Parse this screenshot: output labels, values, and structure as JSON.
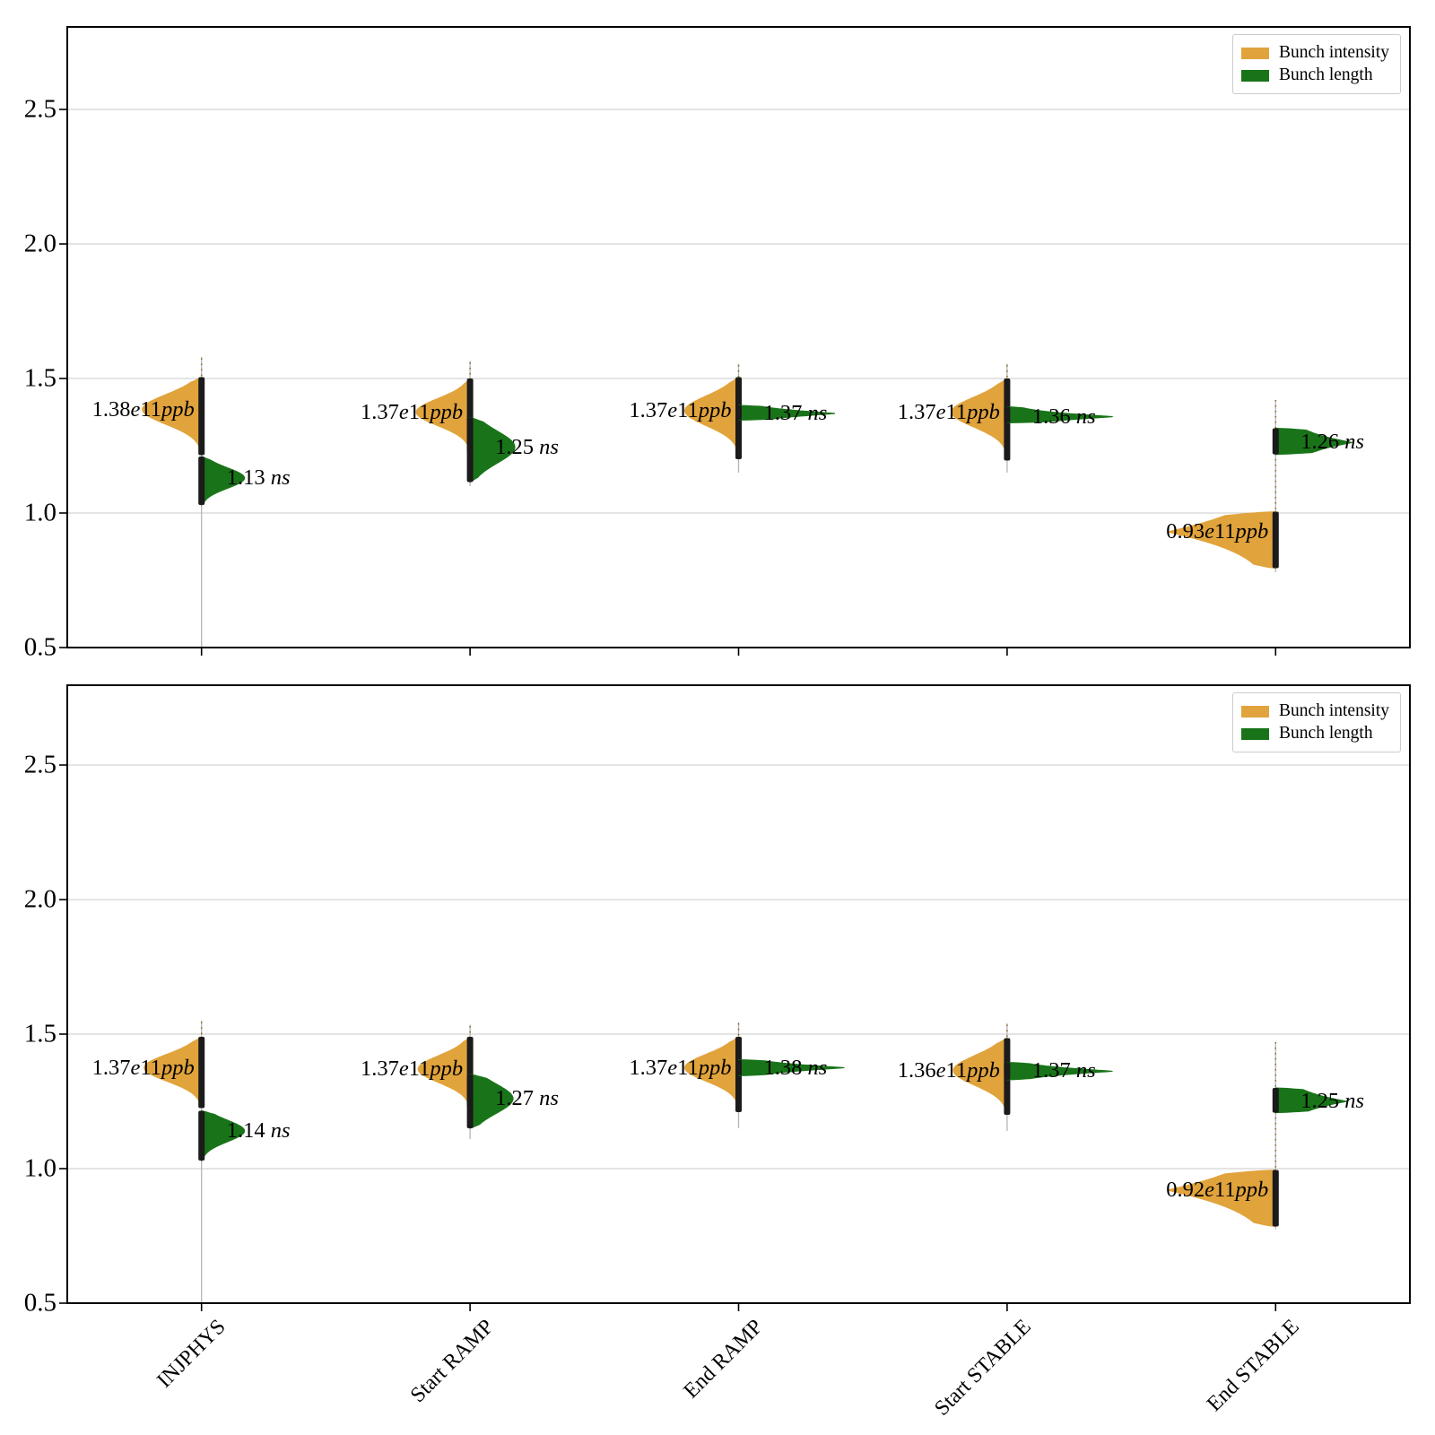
{
  "figure": {
    "background": "#ffffff",
    "frame_color": "#000000",
    "grid_color": "#c9c9c9",
    "whisker_color": "#b5b5b5",
    "dots_color": "#8a6420",
    "bar_color": "#1b1b1b",
    "ytick_labels": [
      "0.5",
      "1.0",
      "1.5",
      "2.0",
      "2.5"
    ],
    "categories": [
      "INJPHYS",
      "Start RAMP",
      "End RAMP",
      "Start STABLE",
      "End STABLE"
    ],
    "legend": {
      "items": [
        {
          "label": "Bunch intensity",
          "color": "#e1a33c"
        },
        {
          "label": "Bunch length",
          "color": "#197419"
        }
      ]
    }
  },
  "chart_data": [
    {
      "type": "violin",
      "panel": "top",
      "ylim": [
        0.5,
        2.8
      ],
      "yticks": [
        0.5,
        1.0,
        1.5,
        2.0,
        2.5
      ],
      "grid": true,
      "legend_position": "upper right",
      "categories": [
        "INJPHYS",
        "Start RAMP",
        "End RAMP",
        "Start STABLE",
        "End STABLE"
      ],
      "series_names": [
        "Bunch intensity",
        "Bunch length"
      ],
      "groups": [
        {
          "category": "INJPHYS",
          "intensity": {
            "label": "1.38e11ppb",
            "value": 1.38,
            "unit": "e11 ppb",
            "peak": 1.385,
            "lo": 1.215,
            "hi": 1.505,
            "maxw": 66,
            "sigma": 0.055,
            "whisker": [
              0.5,
              1.58
            ],
            "dots": [
              1.505,
              1.575
            ]
          },
          "length": {
            "label": "1.13 ns",
            "value": 1.13,
            "unit": "ns",
            "peak": 1.13,
            "lo": 1.03,
            "hi": 1.21,
            "maxw": 48,
            "sigma": 0.038
          }
        },
        {
          "category": "Start RAMP",
          "intensity": {
            "label": "1.37e11ppb",
            "value": 1.37,
            "unit": "e11 ppb",
            "peak": 1.375,
            "lo": 1.22,
            "hi": 1.5,
            "maxw": 60,
            "sigma": 0.05,
            "whisker": [
              1.1,
              1.565
            ],
            "dots": [
              1.5,
              1.56
            ]
          },
          "length": {
            "label": "1.25 ns",
            "value": 1.25,
            "unit": "ns",
            "peak": 1.245,
            "lo": 1.115,
            "hi": 1.355,
            "maxw": 50,
            "sigma": 0.06
          }
        },
        {
          "category": "End RAMP",
          "intensity": {
            "label": "1.37e11ppb",
            "value": 1.37,
            "unit": "e11 ppb",
            "peak": 1.38,
            "lo": 1.2,
            "hi": 1.505,
            "maxw": 60,
            "sigma": 0.055,
            "whisker": [
              1.15,
              1.555
            ],
            "dots": [
              1.505,
              1.55
            ]
          },
          "length": {
            "label": "1.37 ns",
            "value": 1.37,
            "unit": "ns",
            "peak": 1.37,
            "lo": 1.345,
            "hi": 1.4,
            "maxw": 108,
            "sigma": 0.011,
            "p": 1.2
          }
        },
        {
          "category": "Start STABLE",
          "intensity": {
            "label": "1.37e11ppb",
            "value": 1.37,
            "unit": "e11 ppb",
            "peak": 1.375,
            "lo": 1.195,
            "hi": 1.5,
            "maxw": 62,
            "sigma": 0.055,
            "whisker": [
              1.15,
              1.555
            ],
            "dots": [
              1.5,
              1.55
            ]
          },
          "length": {
            "label": "1.36 ns",
            "value": 1.36,
            "unit": "ns",
            "peak": 1.358,
            "lo": 1.335,
            "hi": 1.395,
            "maxw": 118,
            "sigma": 0.011,
            "p": 1.2
          }
        },
        {
          "category": "End STABLE",
          "intensity": {
            "label": "0.93e11ppb",
            "value": 0.93,
            "unit": "e11 ppb",
            "peak": 0.93,
            "lo": 0.795,
            "hi": 1.005,
            "maxw": 120,
            "sigma": 0.042,
            "p": 1.1,
            "whisker": [
              0.78,
              1.42
            ],
            "dots": [
              1.005,
              1.42
            ]
          },
          "length": {
            "label": "1.26 ns",
            "value": 1.26,
            "unit": "ns",
            "peak": 1.262,
            "lo": 1.218,
            "hi": 1.315,
            "maxw": 86,
            "sigma": 0.025,
            "p": 1.0
          }
        }
      ]
    },
    {
      "type": "violin",
      "panel": "bottom",
      "ylim": [
        0.5,
        2.8
      ],
      "yticks": [
        0.5,
        1.0,
        1.5,
        2.0,
        2.5
      ],
      "grid": true,
      "legend_position": "upper right",
      "categories": [
        "INJPHYS",
        "Start RAMP",
        "End RAMP",
        "Start STABLE",
        "End STABLE"
      ],
      "series_names": [
        "Bunch intensity",
        "Bunch length"
      ],
      "groups": [
        {
          "category": "INJPHYS",
          "intensity": {
            "label": "1.37e11ppb",
            "value": 1.37,
            "unit": "e11 ppb",
            "peak": 1.375,
            "lo": 1.225,
            "hi": 1.49,
            "maxw": 64,
            "sigma": 0.05,
            "whisker": [
              0.5,
              1.55
            ],
            "dots": [
              1.49,
              1.545
            ]
          },
          "length": {
            "label": "1.14 ns",
            "value": 1.14,
            "unit": "ns",
            "peak": 1.14,
            "lo": 1.03,
            "hi": 1.215,
            "maxw": 48,
            "sigma": 0.04
          }
        },
        {
          "category": "Start RAMP",
          "intensity": {
            "label": "1.37e11ppb",
            "value": 1.37,
            "unit": "e11 ppb",
            "peak": 1.37,
            "lo": 1.23,
            "hi": 1.49,
            "maxw": 58,
            "sigma": 0.05,
            "whisker": [
              1.11,
              1.535
            ],
            "dots": [
              1.49,
              1.53
            ]
          },
          "length": {
            "label": "1.27 ns",
            "value": 1.27,
            "unit": "ns",
            "peak": 1.26,
            "lo": 1.15,
            "hi": 1.35,
            "maxw": 48,
            "sigma": 0.055
          }
        },
        {
          "category": "End RAMP",
          "intensity": {
            "label": "1.37e11ppb",
            "value": 1.37,
            "unit": "e11 ppb",
            "peak": 1.375,
            "lo": 1.21,
            "hi": 1.49,
            "maxw": 60,
            "sigma": 0.05,
            "whisker": [
              1.15,
              1.545
            ],
            "dots": [
              1.49,
              1.54
            ]
          },
          "length": {
            "label": "1.38 ns",
            "value": 1.38,
            "unit": "ns",
            "peak": 1.375,
            "lo": 1.345,
            "hi": 1.405,
            "maxw": 118,
            "sigma": 0.011,
            "p": 1.2
          }
        },
        {
          "category": "Start STABLE",
          "intensity": {
            "label": "1.36e11ppb",
            "value": 1.36,
            "unit": "e11 ppb",
            "peak": 1.365,
            "lo": 1.2,
            "hi": 1.485,
            "maxw": 60,
            "sigma": 0.055,
            "whisker": [
              1.14,
              1.54
            ],
            "dots": [
              1.485,
              1.535
            ]
          },
          "length": {
            "label": "1.37 ns",
            "value": 1.37,
            "unit": "ns",
            "peak": 1.362,
            "lo": 1.33,
            "hi": 1.395,
            "maxw": 118,
            "sigma": 0.011,
            "p": 1.2
          }
        },
        {
          "category": "End STABLE",
          "intensity": {
            "label": "0.92e11ppb",
            "value": 0.92,
            "unit": "e11 ppb",
            "peak": 0.92,
            "lo": 0.785,
            "hi": 0.995,
            "maxw": 120,
            "sigma": 0.042,
            "p": 1.1,
            "whisker": [
              0.775,
              1.47
            ],
            "dots": [
              1.0,
              1.47
            ]
          },
          "length": {
            "label": "1.25 ns",
            "value": 1.25,
            "unit": "ns",
            "peak": 1.25,
            "lo": 1.208,
            "hi": 1.3,
            "maxw": 80,
            "sigma": 0.023,
            "p": 1.0
          }
        }
      ]
    }
  ]
}
